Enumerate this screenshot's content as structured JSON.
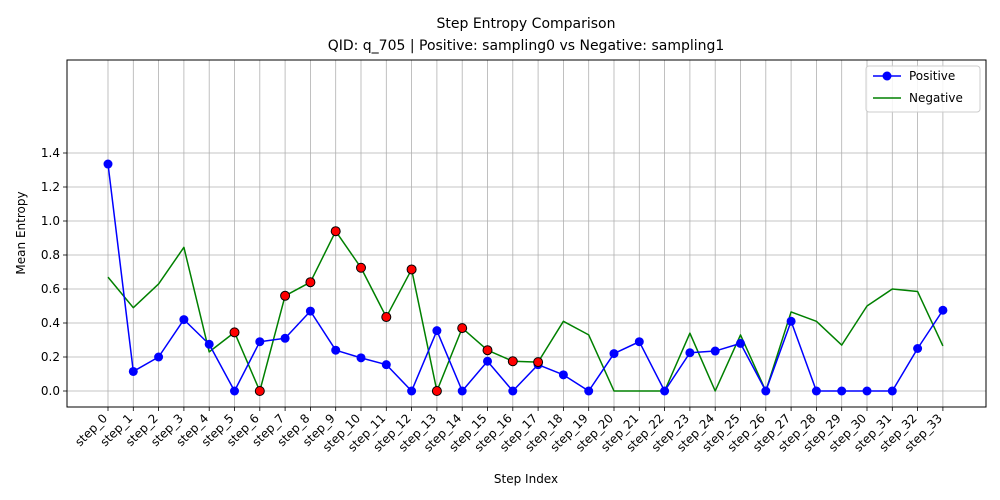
{
  "chart_data": {
    "type": "line",
    "title": "Step Entropy Comparison",
    "subtitle": "QID: q_705 | Positive: sampling0 vs Negative: sampling1",
    "xlabel": "Step Index",
    "ylabel": "Mean Entropy",
    "ylim": [
      -0.065,
      1.4
    ],
    "yticks": [
      "0.0",
      "0.2",
      "0.4",
      "0.6",
      "0.8",
      "1.0",
      "1.2",
      "1.4"
    ],
    "grid": true,
    "legend_position": "top-right",
    "categories": [
      "step_0",
      "step_1",
      "step_2",
      "step_3",
      "step_4",
      "step_5",
      "step_6",
      "step_7",
      "step_8",
      "step_9",
      "step_10",
      "step_11",
      "step_12",
      "step_13",
      "step_14",
      "step_15",
      "step_16",
      "step_17",
      "step_18",
      "step_19",
      "step_20",
      "step_21",
      "step_22",
      "step_23",
      "step_24",
      "step_25",
      "step_26",
      "step_27",
      "step_28",
      "step_29",
      "step_30",
      "step_31",
      "step_32",
      "step_33"
    ],
    "series": [
      {
        "name": "Positive",
        "color": "#0000ff",
        "markers": true,
        "values": [
          1.335,
          0.115,
          0.2,
          0.42,
          0.275,
          0.0,
          0.29,
          0.31,
          0.47,
          0.24,
          0.195,
          0.155,
          0.0,
          0.355,
          0.0,
          0.175,
          0.0,
          0.155,
          0.095,
          0.0,
          0.22,
          0.29,
          0.0,
          0.225,
          0.235,
          0.28,
          0.0,
          0.41,
          0.0,
          0.0,
          0.0,
          0.0,
          0.25,
          0.475
        ]
      },
      {
        "name": "Negative",
        "color": "#008000",
        "markers": false,
        "values": [
          0.67,
          0.49,
          0.63,
          0.845,
          0.23,
          0.345,
          0.0,
          0.56,
          0.64,
          0.94,
          0.725,
          0.435,
          0.715,
          0.0,
          0.37,
          0.24,
          0.175,
          0.17,
          0.41,
          0.33,
          0.0,
          0.0,
          0.0,
          0.34,
          0.0,
          0.33,
          0.0,
          0.465,
          0.41,
          0.27,
          0.5,
          0.6,
          0.585,
          0.265
        ]
      }
    ],
    "highlight_points": {
      "color": "#ff0000",
      "series": "Negative",
      "indices": [
        5,
        6,
        7,
        8,
        9,
        10,
        11,
        12,
        13,
        14,
        15,
        16,
        17
      ]
    }
  }
}
